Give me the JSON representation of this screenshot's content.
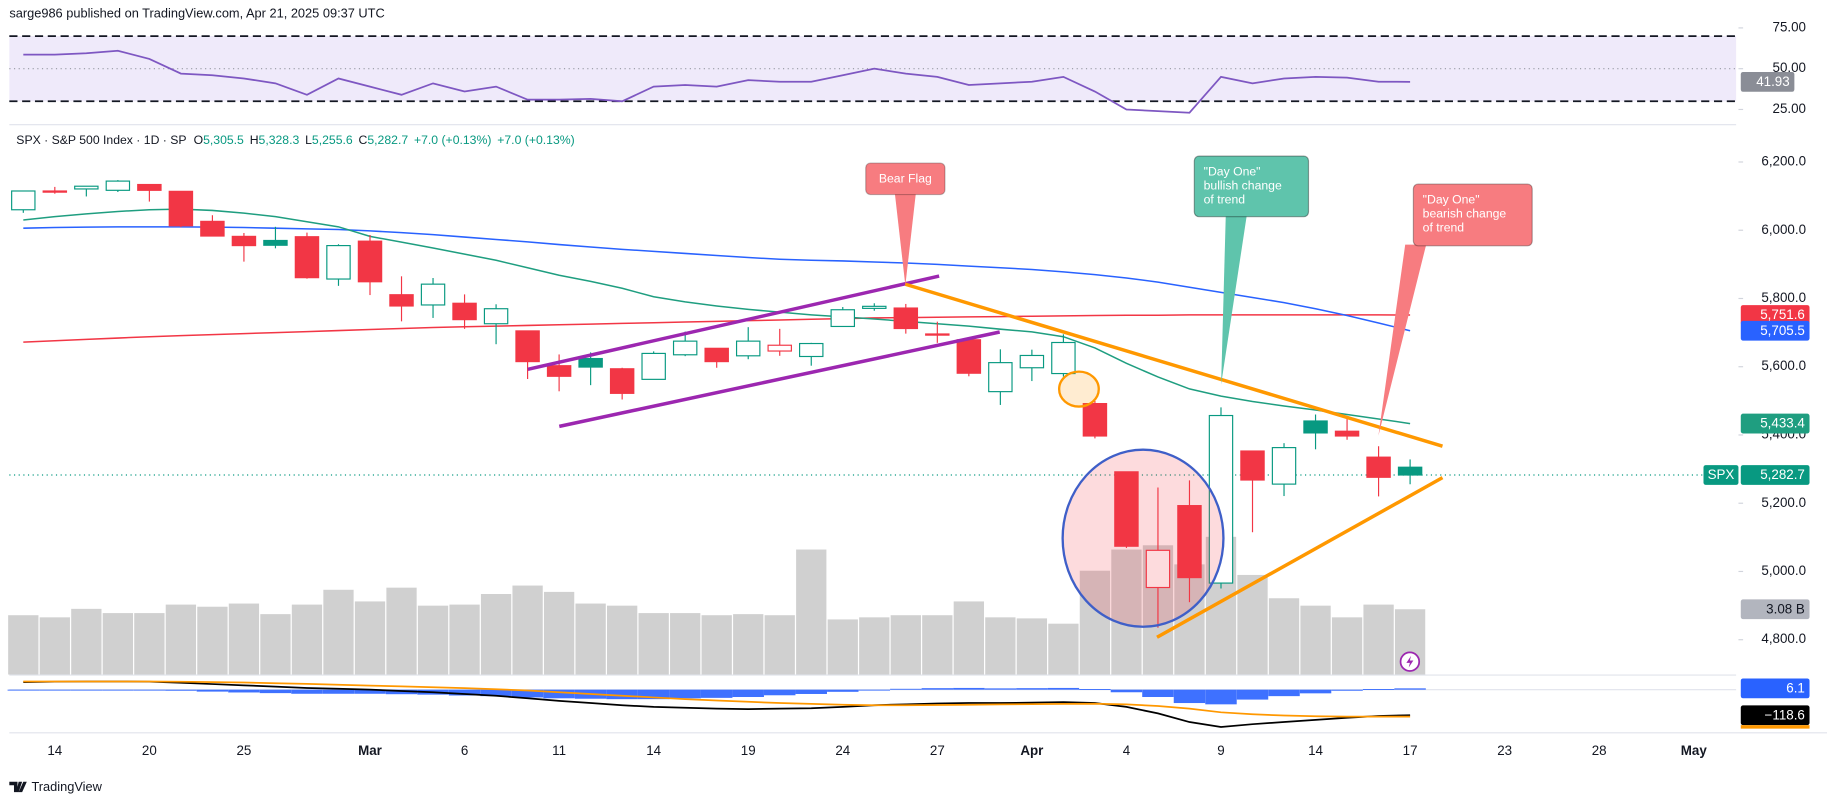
{
  "header": {
    "text": "sarge986 published on TradingView.com, Apr 21, 2025 09:37 UTC"
  },
  "legend": {
    "symbol": "SPX · S&P 500 Index · 1D · SP",
    "items": [
      {
        "key": "O",
        "value": "5,305.5"
      },
      {
        "key": "H",
        "value": "5,328.3"
      },
      {
        "key": "L",
        "value": "5,255.6"
      },
      {
        "key": "C",
        "value": "5,282.7"
      }
    ],
    "change": [
      "+7.0 (+0.13%)",
      "+7.0 (+0.13%)"
    ]
  },
  "chart_data": [
    {
      "type": "line",
      "color": "#7e57c2",
      "values": [
        58.6,
        58.6,
        59.5,
        61,
        56,
        47,
        46,
        44,
        41,
        34,
        44,
        39,
        34,
        41,
        36,
        39,
        31,
        31,
        31.5,
        30,
        39,
        40,
        39,
        43,
        42,
        42,
        46,
        50,
        47,
        45,
        40,
        41,
        42,
        45,
        36,
        25,
        24,
        23,
        45,
        41,
        44,
        45,
        44.5,
        42,
        41.93,
        null,
        null,
        null,
        null,
        null,
        null,
        null,
        null,
        null,
        null
      ],
      "ylim": [
        16.4,
        76.4
      ],
      "yticks": [
        {
          "value": 75,
          "label": "75.00"
        },
        {
          "value": 50,
          "label": "50.00"
        },
        {
          "value": 25,
          "label": "25.00"
        }
      ],
      "bands": [
        30,
        70
      ],
      "midline": 50,
      "band_color": "#efeafa"
    },
    {
      "type": "candlestick",
      "symbol": "SPX",
      "up_color": "#089981",
      "down_color": "#f23645",
      "categories": [
        null,
        "14",
        null,
        null,
        "20",
        null,
        null,
        "25",
        null,
        null,
        null,
        "Mar",
        null,
        null,
        "6",
        null,
        null,
        "11",
        null,
        null,
        "14",
        null,
        null,
        "19",
        null,
        null,
        "24",
        null,
        null,
        "27",
        null,
        null,
        "Apr",
        null,
        null,
        "4",
        null,
        null,
        "9",
        null,
        null,
        "14",
        null,
        null,
        "17",
        null,
        null,
        "23",
        null,
        null,
        "28",
        null,
        null,
        "May",
        null
      ],
      "open": [
        6060,
        6115,
        6121,
        6117,
        6134,
        6114,
        6026,
        5982,
        5970,
        5981,
        5857,
        5968,
        5811,
        5781,
        5786,
        5726,
        5705,
        5603,
        5624,
        5594,
        5563,
        5635,
        5654,
        5632,
        5646,
        5630,
        5718,
        5771,
        5772,
        5696,
        5679,
        5527,
        5597,
        5580,
        5492,
        5292,
        4953,
        5193,
        4966,
        5353,
        5256,
        5441,
        5411,
        5335,
        5305.5,
        null,
        null,
        null,
        null,
        null,
        null,
        null,
        null,
        null,
        null
      ],
      "high": [
        6116,
        6127,
        6129,
        6147,
        6134,
        6114,
        6044,
        5992,
        6010,
        5993,
        5959,
        5986,
        5865,
        5860,
        5812,
        5783,
        5705,
        5636,
        5642,
        5597,
        5645,
        5703,
        5654,
        5716,
        5711,
        5670,
        5775,
        5786,
        5784,
        5732,
        5685,
        5651,
        5650,
        5695,
        5500,
        5292,
        5246,
        5267,
        5481,
        5353,
        5376,
        5460,
        5450,
        5367,
        5328.3,
        null,
        null,
        null,
        null,
        null,
        null,
        null,
        null,
        null,
        null
      ],
      "low": [
        6051,
        6107,
        6099,
        6112,
        6084,
        6009,
        5986,
        5908,
        5947,
        5858,
        5837,
        5810,
        5733,
        5743,
        5711,
        5666,
        5564,
        5528,
        5546,
        5504,
        5563,
        5631,
        5597,
        5622,
        5632,
        5603,
        5718,
        5764,
        5697,
        5670,
        5572,
        5488,
        5558,
        5571,
        5390,
        5069,
        4835,
        4910,
        4950,
        5115,
        5221,
        5358,
        5386,
        5220,
        5255.6,
        null,
        null,
        null,
        null,
        null,
        null,
        null,
        null,
        null,
        null
      ],
      "close": [
        6115,
        6114,
        6129,
        6144,
        6117,
        6013,
        5983,
        5955,
        5956,
        5861,
        5955,
        5849,
        5778,
        5842,
        5738,
        5770,
        5615,
        5572,
        5599,
        5522,
        5639,
        5675,
        5615,
        5675,
        5663,
        5668,
        5767,
        5777,
        5712,
        5694,
        5581,
        5612,
        5633,
        5671,
        5397,
        5074,
        5062,
        4982,
        5457,
        5268,
        5363,
        5406,
        5397,
        5276,
        5282.7,
        null,
        null,
        null,
        null,
        null,
        null,
        null,
        null,
        null,
        null
      ],
      "close_labels": [
        null,
        null,
        null,
        null,
        null,
        null,
        null,
        null,
        null,
        null,
        null,
        null,
        null,
        null,
        null,
        null,
        null,
        null,
        null,
        null,
        null,
        null,
        null,
        null,
        null,
        null,
        null,
        null,
        null,
        null,
        null,
        null,
        null,
        null,
        null,
        null,
        null,
        null,
        null,
        null,
        null,
        null,
        null,
        null,
        "5,282.7",
        null,
        null,
        null,
        null,
        null,
        null,
        null,
        null,
        null,
        null
      ],
      "ylim": [
        4698,
        6306
      ],
      "yticks": [
        {
          "value": 4800,
          "label": "4,800.0"
        },
        {
          "value": 5000,
          "label": "5,000.0"
        },
        {
          "value": 5200,
          "label": "5,200.0"
        },
        {
          "value": 5400,
          "label": "5,400.0"
        },
        {
          "value": 5600,
          "label": "5,600.0"
        },
        {
          "value": 5800,
          "label": "5,800.0"
        },
        {
          "value": 6000,
          "label": "6,000.0"
        },
        {
          "value": 6200,
          "label": "6,200.0"
        }
      ],
      "series": [
        {
          "color": "#f23645",
          "values": [
            5672,
            5676,
            5680,
            5684,
            5688,
            5691,
            5694,
            5697,
            5700,
            5703,
            5706,
            5709,
            5712,
            5715,
            5717,
            5719,
            5721,
            5723,
            5725,
            5727,
            5729,
            5731,
            5733,
            5735,
            5737,
            5739,
            5741,
            5743,
            5744,
            5745,
            5746,
            5747,
            5748,
            5749,
            5750,
            5751,
            5751,
            5752,
            5752,
            5752,
            5752,
            5752,
            5752,
            5752,
            5751.6,
            null,
            null,
            null,
            null,
            null,
            null,
            null,
            null,
            null,
            null
          ],
          "value_labels": [
            null,
            null,
            null,
            null,
            null,
            null,
            null,
            null,
            null,
            null,
            null,
            null,
            null,
            null,
            null,
            null,
            null,
            null,
            null,
            null,
            null,
            null,
            null,
            null,
            null,
            null,
            null,
            null,
            null,
            null,
            null,
            null,
            null,
            null,
            null,
            null,
            null,
            null,
            null,
            null,
            null,
            null,
            null,
            null,
            "5,751.6",
            null,
            null,
            null,
            null,
            null,
            null,
            null,
            null,
            null,
            null
          ]
        },
        {
          "color": "#2962ff",
          "values": [
            6006,
            6008,
            6009,
            6010,
            6010,
            6010,
            6009,
            6008,
            6006,
            6004,
            6002,
            5998,
            5993,
            5987,
            5980,
            5973,
            5966,
            5958,
            5951,
            5944,
            5938,
            5932,
            5926,
            5920,
            5915,
            5912,
            5910,
            5907,
            5904,
            5900,
            5895,
            5890,
            5885,
            5878,
            5870,
            5860,
            5848,
            5833,
            5818,
            5803,
            5788,
            5770,
            5750,
            5728,
            5705.5,
            null,
            null,
            null,
            null,
            null,
            null,
            null,
            null,
            null,
            null
          ],
          "value_labels": [
            null,
            null,
            null,
            null,
            null,
            null,
            null,
            null,
            null,
            null,
            null,
            null,
            null,
            null,
            null,
            null,
            null,
            null,
            null,
            null,
            null,
            null,
            null,
            null,
            null,
            null,
            null,
            null,
            null,
            null,
            null,
            null,
            null,
            null,
            null,
            null,
            null,
            null,
            null,
            null,
            null,
            null,
            null,
            null,
            "5,705.5",
            null,
            null,
            null,
            null,
            null,
            null,
            null,
            null,
            null,
            null
          ]
        },
        {
          "color": "#1f9e80",
          "values": [
            6030,
            6040,
            6048,
            6055,
            6060,
            6062,
            6058,
            6050,
            6040,
            6025,
            6010,
            5982,
            5965,
            5948,
            5930,
            5912,
            5890,
            5868,
            5850,
            5830,
            5805,
            5790,
            5778,
            5768,
            5760,
            5752,
            5746,
            5740,
            5733,
            5726,
            5719,
            5710,
            5702,
            5688,
            5655,
            5610,
            5570,
            5535,
            5514,
            5498,
            5485,
            5473,
            5460,
            5447,
            5433.4,
            null,
            null,
            null,
            null,
            null,
            null,
            null,
            null,
            null,
            null
          ],
          "value_labels": [
            null,
            null,
            null,
            null,
            null,
            null,
            null,
            null,
            null,
            null,
            null,
            null,
            null,
            null,
            null,
            null,
            null,
            null,
            null,
            null,
            null,
            null,
            null,
            null,
            null,
            null,
            null,
            null,
            null,
            null,
            null,
            null,
            null,
            null,
            null,
            null,
            null,
            null,
            null,
            null,
            null,
            null,
            null,
            null,
            "5,433.4",
            null,
            null,
            null,
            null,
            null,
            null,
            null,
            null,
            null,
            null
          ]
        }
      ]
    },
    {
      "type": "bar",
      "color": "#c8c8c8",
      "values": [
        2.8,
        2.7,
        3.1,
        2.9,
        2.9,
        3.3,
        3.2,
        3.35,
        2.85,
        3.3,
        4.0,
        3.45,
        4.1,
        3.25,
        3.3,
        3.8,
        4.2,
        3.9,
        3.35,
        3.25,
        2.9,
        2.9,
        2.8,
        2.85,
        2.8,
        5.9,
        2.6,
        2.7,
        2.8,
        2.8,
        3.45,
        2.7,
        2.65,
        2.4,
        4.9,
        5.9,
        6.1,
        5.2,
        6.5,
        4.7,
        3.6,
        3.25,
        2.7,
        3.3,
        3.08,
        null,
        null,
        null,
        null,
        null,
        null,
        null,
        null,
        null,
        null
      ],
      "value_labels": [
        null,
        null,
        null,
        null,
        null,
        null,
        null,
        null,
        null,
        null,
        null,
        null,
        null,
        null,
        null,
        null,
        null,
        null,
        null,
        null,
        null,
        null,
        null,
        null,
        null,
        null,
        null,
        null,
        null,
        null,
        null,
        null,
        null,
        null,
        null,
        null,
        null,
        null,
        null,
        null,
        null,
        null,
        null,
        null,
        "3.08 B",
        null,
        null,
        null,
        null,
        null,
        null,
        null,
        null,
        null,
        null
      ],
      "ylim": [
        0,
        25.9
      ]
    },
    {
      "type": "macd",
      "ylim": [
        -194.4,
        64.8
      ],
      "histogram": {
        "color": "#2962ff",
        "values": [
          -3,
          -1,
          0,
          0,
          -1,
          -5,
          -9,
          -13,
          -16,
          -19,
          -19,
          -19,
          -21,
          -23,
          -27,
          -30,
          -36,
          -40,
          -42,
          -44,
          -44,
          -40,
          -38,
          -34,
          -26,
          -20,
          -10,
          0,
          4,
          7,
          8,
          6,
          7,
          8,
          3,
          -12,
          -34,
          -62,
          -68,
          -46,
          -30,
          -17,
          -5,
          3,
          6.1,
          null,
          null,
          null,
          null,
          null,
          null,
          null,
          null,
          null,
          null
        ]
      },
      "series": [
        {
          "color": "#000000",
          "values": [
            35,
            37,
            38,
            38,
            37,
            32,
            26,
            20,
            14,
            8,
            4,
            0,
            -6,
            -12,
            -20,
            -28,
            -40,
            -52,
            -62,
            -72,
            -80,
            -84,
            -88,
            -90,
            -88,
            -86,
            -80,
            -72,
            -68,
            -64,
            -62,
            -62,
            -60,
            -58,
            -62,
            -80,
            -110,
            -150,
            -173,
            -160,
            -150,
            -140,
            -130,
            -122,
            -118.6,
            null,
            null,
            null,
            null,
            null,
            null,
            null,
            null,
            null,
            null
          ],
          "value_labels": [
            null,
            null,
            null,
            null,
            null,
            null,
            null,
            null,
            null,
            null,
            null,
            null,
            null,
            null,
            null,
            null,
            null,
            null,
            null,
            null,
            null,
            null,
            null,
            null,
            null,
            null,
            null,
            null,
            null,
            null,
            null,
            null,
            null,
            null,
            null,
            null,
            null,
            null,
            null,
            null,
            null,
            null,
            null,
            null,
            "−118.6",
            null,
            null,
            null,
            null,
            null,
            null,
            null,
            null,
            null,
            null
          ]
        },
        {
          "color": "#ff9800",
          "values": [
            38,
            38,
            38,
            38,
            38,
            37,
            35,
            33,
            30,
            27,
            23,
            19,
            15,
            11,
            7,
            2,
            -4,
            -12,
            -20,
            -28,
            -36,
            -44,
            -50,
            -56,
            -62,
            -66,
            -70,
            -72,
            -72,
            -71,
            -70,
            -68,
            -67,
            -66,
            -65,
            -68,
            -76,
            -88,
            -105,
            -114,
            -120,
            -123,
            -125,
            -125,
            -124.7,
            null,
            null,
            null,
            null,
            null,
            null,
            null,
            null,
            null,
            null
          ]
        }
      ]
    }
  ],
  "annotations": [
    {
      "lines": [
        "Bear Flag"
      ],
      "color": "#f77c80"
    },
    {
      "lines": [
        "\"Day One\"",
        "bullish change",
        "of trend"
      ],
      "color": "#5fc4ac"
    },
    {
      "lines": [
        "\"Day One\"",
        "bearish change",
        "of trend"
      ],
      "color": "#f77c80"
    }
  ],
  "footer": {
    "brand": "TradingView"
  }
}
